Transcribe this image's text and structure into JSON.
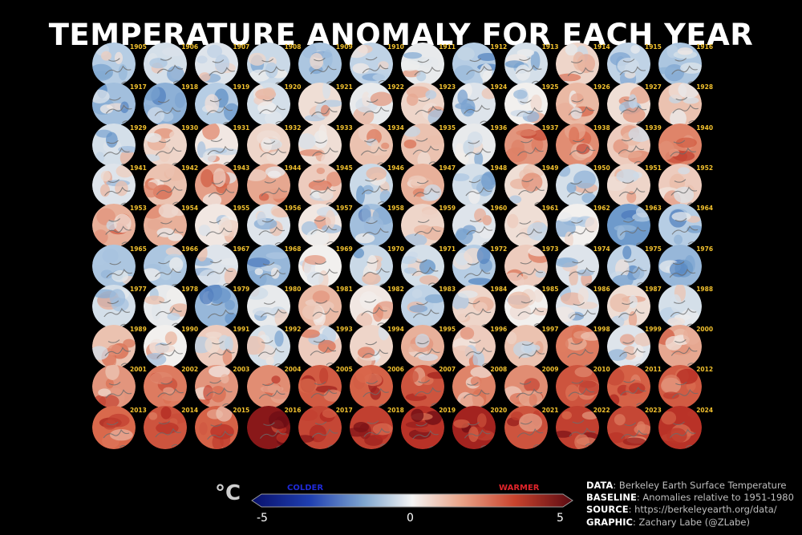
{
  "title": "TEMPERATURE ANOMALY FOR EACH YEAR",
  "map_grid": {
    "years": [
      1905,
      1906,
      1907,
      1908,
      1909,
      1910,
      1911,
      1912,
      1913,
      1914,
      1915,
      1916,
      1917,
      1918,
      1919,
      1920,
      1921,
      1922,
      1923,
      1924,
      1925,
      1926,
      1927,
      1928,
      1929,
      1930,
      1931,
      1932,
      1933,
      1934,
      1935,
      1936,
      1937,
      1938,
      1939,
      1940,
      1941,
      1942,
      1943,
      1944,
      1945,
      1946,
      1947,
      1948,
      1949,
      1950,
      1951,
      1952,
      1953,
      1954,
      1955,
      1956,
      1957,
      1958,
      1959,
      1960,
      1961,
      1962,
      1963,
      1964,
      1965,
      1966,
      1967,
      1968,
      1969,
      1970,
      1971,
      1972,
      1973,
      1974,
      1975,
      1976,
      1977,
      1978,
      1979,
      1980,
      1981,
      1982,
      1983,
      1984,
      1985,
      1986,
      1987,
      1988,
      1989,
      1990,
      1991,
      1992,
      1993,
      1994,
      1995,
      1996,
      1997,
      1998,
      1999,
      2000,
      2001,
      2002,
      2003,
      2004,
      2005,
      2006,
      2007,
      2008,
      2009,
      2010,
      2011,
      2012,
      2013,
      2014,
      2015,
      2016,
      2017,
      2018,
      2019,
      2020,
      2021,
      2022,
      2023,
      2024
    ],
    "anomalies_c": [
      -0.6,
      -0.3,
      -0.2,
      -0.4,
      -0.7,
      -0.5,
      -0.1,
      -0.6,
      -0.3,
      0.3,
      -0.5,
      -0.7,
      -0.8,
      -1.0,
      -0.6,
      -0.3,
      0.2,
      -0.1,
      0.3,
      -0.2,
      0.0,
      0.6,
      0.2,
      0.5,
      -0.3,
      0.3,
      0.1,
      0.3,
      0.2,
      0.5,
      0.5,
      -0.1,
      1.0,
      1.1,
      0.4,
      1.2,
      -0.2,
      0.5,
      0.9,
      0.8,
      0.4,
      -0.4,
      0.7,
      -0.3,
      0.2,
      -0.3,
      0.3,
      0.4,
      0.7,
      0.7,
      0.1,
      -0.2,
      0.1,
      -0.8,
      0.3,
      -0.2,
      0.2,
      0.0,
      -1.3,
      -0.6,
      -0.7,
      -0.7,
      -0.2,
      -0.9,
      0.0,
      -0.4,
      -0.3,
      -0.6,
      0.4,
      -0.2,
      -0.5,
      -0.9,
      -0.3,
      -0.1,
      -0.9,
      -0.1,
      0.6,
      0.1,
      -0.5,
      0.3,
      0.0,
      -0.2,
      0.2,
      -0.3,
      0.5,
      0.0,
      0.4,
      -0.3,
      0.4,
      0.3,
      0.7,
      0.4,
      0.5,
      1.3,
      -0.2,
      0.8,
      1.0,
      1.3,
      1.0,
      1.1,
      1.7,
      1.6,
      1.8,
      1.2,
      1.1,
      1.8,
      1.6,
      1.7,
      1.5,
      1.8,
      1.6,
      2.9,
      2.0,
      2.1,
      2.3,
      2.6,
      1.8,
      2.1,
      2.0,
      2.3
    ],
    "columns": 12,
    "rows": 10
  },
  "colorbar": {
    "unit": "°C",
    "label_low": "COLDER",
    "label_high": "WARMER",
    "min": -5,
    "max": 5,
    "ticks": [
      -5,
      0,
      5
    ],
    "color_low": "#1f2ad8",
    "color_high": "#e0242a"
  },
  "credits": {
    "data_label": "DATA",
    "data_value": ": Berkeley Earth Surface Temperature",
    "baseline_label": "BASELINE",
    "baseline_value": ": Anomalies relative to 1951-1980",
    "source_label": "SOURCE",
    "source_value": ": https://berkeleyearth.org/data/",
    "graphic_label": "GRAPHIC",
    "graphic_value": ": Zachary Labe (@ZLabe)"
  }
}
